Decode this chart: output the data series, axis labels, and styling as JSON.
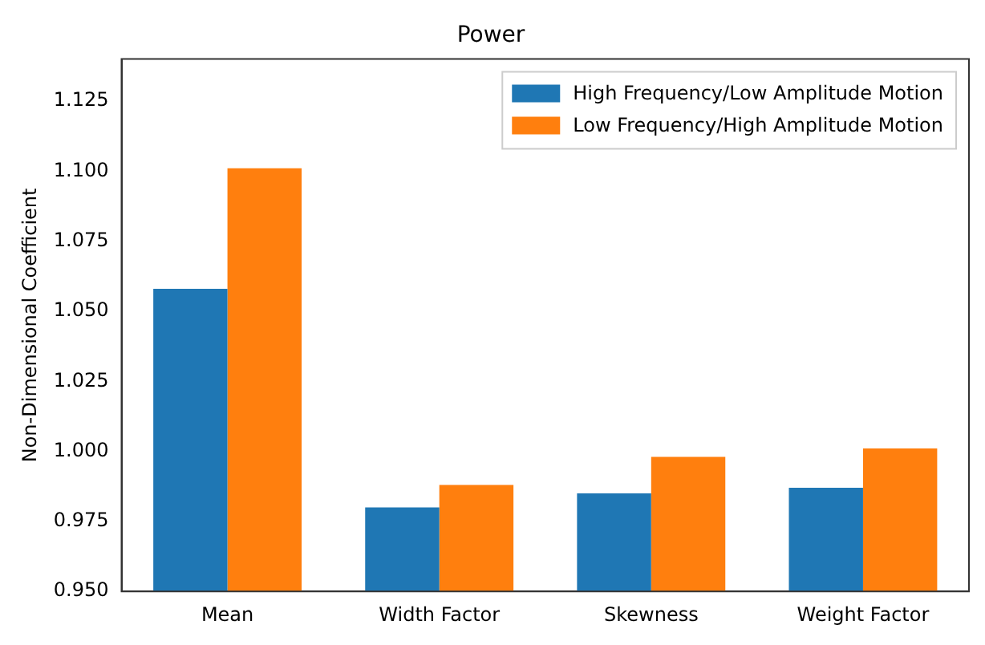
{
  "chart_data": {
    "type": "bar",
    "title": "Power",
    "ylabel": "Non-Dimensional Coefficient",
    "categories": [
      "Mean",
      "Width Factor",
      "Skewness",
      "Weight Factor"
    ],
    "series": [
      {
        "name": "High Frequency/Low Amplitude Motion",
        "color": "#1f77b4",
        "values": [
          1.058,
          0.98,
          0.985,
          0.987
        ]
      },
      {
        "name": "Low Frequency/High Amplitude Motion",
        "color": "#ff7f0e",
        "values": [
          1.101,
          0.988,
          0.998,
          1.001
        ]
      }
    ],
    "ylim": [
      0.95,
      1.14
    ],
    "yticks": [
      {
        "value": 0.95,
        "label": "0.950"
      },
      {
        "value": 0.975,
        "label": "0.975"
      },
      {
        "value": 1.0,
        "label": "1.000"
      },
      {
        "value": 1.025,
        "label": "1.025"
      },
      {
        "value": 1.05,
        "label": "1.050"
      },
      {
        "value": 1.075,
        "label": "1.075"
      },
      {
        "value": 1.1,
        "label": "1.100"
      },
      {
        "value": 1.125,
        "label": "1.125"
      }
    ],
    "grid": false,
    "legend": "top right"
  }
}
